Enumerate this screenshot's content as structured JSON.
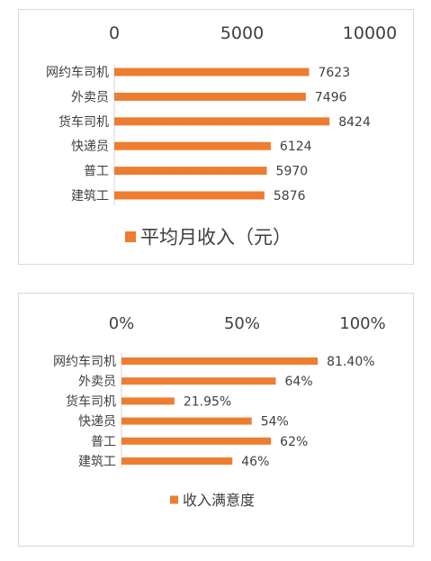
{
  "chart_data": [
    {
      "type": "bar",
      "orientation": "horizontal",
      "categories": [
        "网约车司机",
        "外卖员",
        "货车司机",
        "快递员",
        "普工",
        "建筑工"
      ],
      "series": [
        {
          "name": "平均月收入（元）",
          "values": [
            7623,
            7496,
            8424,
            6124,
            5970,
            5876
          ]
        }
      ],
      "value_labels": [
        "7623",
        "7496",
        "8424",
        "6124",
        "5970",
        "5876"
      ],
      "xlim": [
        0,
        10000
      ],
      "ticks": [
        {
          "value": 0,
          "label": "0"
        },
        {
          "value": 5000,
          "label": "5000"
        },
        {
          "value": 10000,
          "label": "10000"
        }
      ],
      "axis_position": "top",
      "grid": false,
      "legend": "bottom",
      "color": "#ED7D31"
    },
    {
      "type": "bar",
      "orientation": "horizontal",
      "categories": [
        "网约车司机",
        "外卖员",
        "货车司机",
        "快递员",
        "普工",
        "建筑工"
      ],
      "series": [
        {
          "name": "收入满意度",
          "values": [
            81.4,
            64,
            21.95,
            54,
            62,
            46
          ]
        }
      ],
      "value_labels": [
        "81.40%",
        "64%",
        "21.95%",
        "54%",
        "62%",
        "46%"
      ],
      "xlim": [
        0,
        100
      ],
      "ticks": [
        {
          "value": 0,
          "label": "0%"
        },
        {
          "value": 50,
          "label": "50%"
        },
        {
          "value": 100,
          "label": "100%"
        }
      ],
      "axis_position": "top",
      "grid": false,
      "legend": "bottom",
      "color": "#ED7D31"
    }
  ]
}
